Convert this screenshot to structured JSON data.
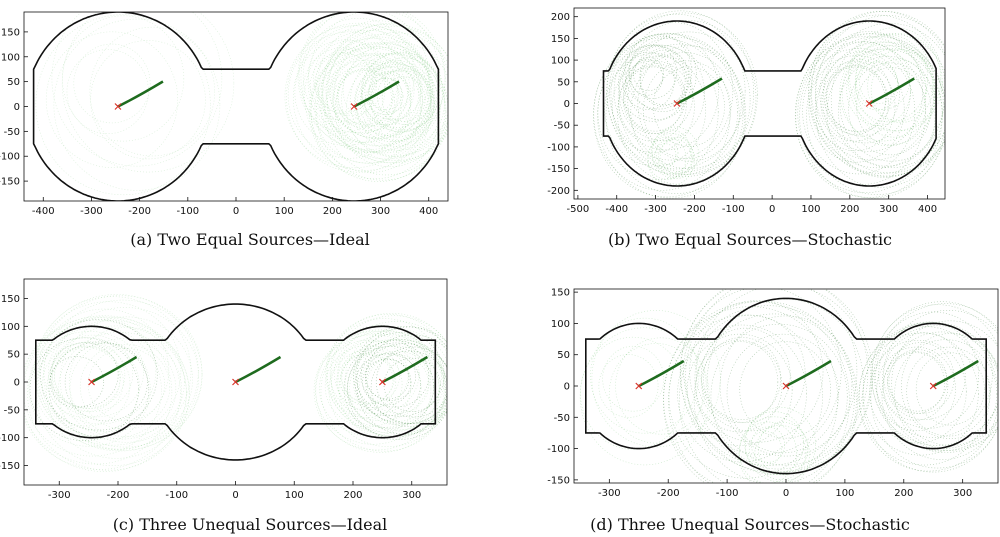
{
  "colors": {
    "boundary": "#111111",
    "trail_light": "#7ec87e",
    "trail_dark": "#1e6b1e",
    "source_marker": "#d9342b"
  },
  "chart_data": [
    {
      "type": "scatter",
      "caption": "(a)  Two Equal Sources—Ideal",
      "xlim": [
        -440,
        440
      ],
      "ylim": [
        -190,
        190
      ],
      "xticks": [
        -400,
        -300,
        -200,
        -100,
        0,
        100,
        200,
        300,
        400
      ],
      "yticks": [
        150,
        100,
        50,
        0,
        -50,
        -100,
        -150
      ],
      "sources": [
        {
          "x": -245,
          "y": 0
        },
        {
          "x": 245,
          "y": 0
        }
      ],
      "grid": false
    },
    {
      "type": "scatter",
      "caption": "(b)  Two Equal Sources—Stochastic",
      "xlim": [
        -510,
        445
      ],
      "ylim": [
        -220,
        220
      ],
      "xticks": [
        -500,
        -400,
        -300,
        -200,
        -100,
        0,
        100,
        200,
        300,
        400
      ],
      "yticks": [
        200,
        150,
        100,
        50,
        0,
        -50,
        -100,
        -150,
        -200
      ],
      "sources": [
        {
          "x": -245,
          "y": 0
        },
        {
          "x": 250,
          "y": 0
        }
      ],
      "grid": false
    },
    {
      "type": "scatter",
      "caption": "(c)  Three Unequal Sources—Ideal",
      "xlim": [
        -360,
        360
      ],
      "ylim": [
        -185,
        185
      ],
      "xticks": [
        -300,
        -200,
        -100,
        0,
        100,
        200,
        300
      ],
      "yticks": [
        150,
        100,
        50,
        0,
        -50,
        -100,
        -150
      ],
      "sources": [
        {
          "x": -245,
          "y": 0
        },
        {
          "x": 0,
          "y": 0
        },
        {
          "x": 250,
          "y": 0
        }
      ],
      "grid": false
    },
    {
      "type": "scatter",
      "caption": "(d)  Three Unequal Sources—Stochastic",
      "xlim": [
        -360,
        360
      ],
      "ylim": [
        -155,
        155
      ],
      "xticks": [
        -300,
        -200,
        -100,
        0,
        100,
        200,
        300
      ],
      "yticks": [
        150,
        100,
        50,
        0,
        -50,
        -100,
        -150
      ],
      "sources": [
        {
          "x": -250,
          "y": 0
        },
        {
          "x": 0,
          "y": 0
        },
        {
          "x": 250,
          "y": 0
        }
      ],
      "grid": false
    }
  ]
}
